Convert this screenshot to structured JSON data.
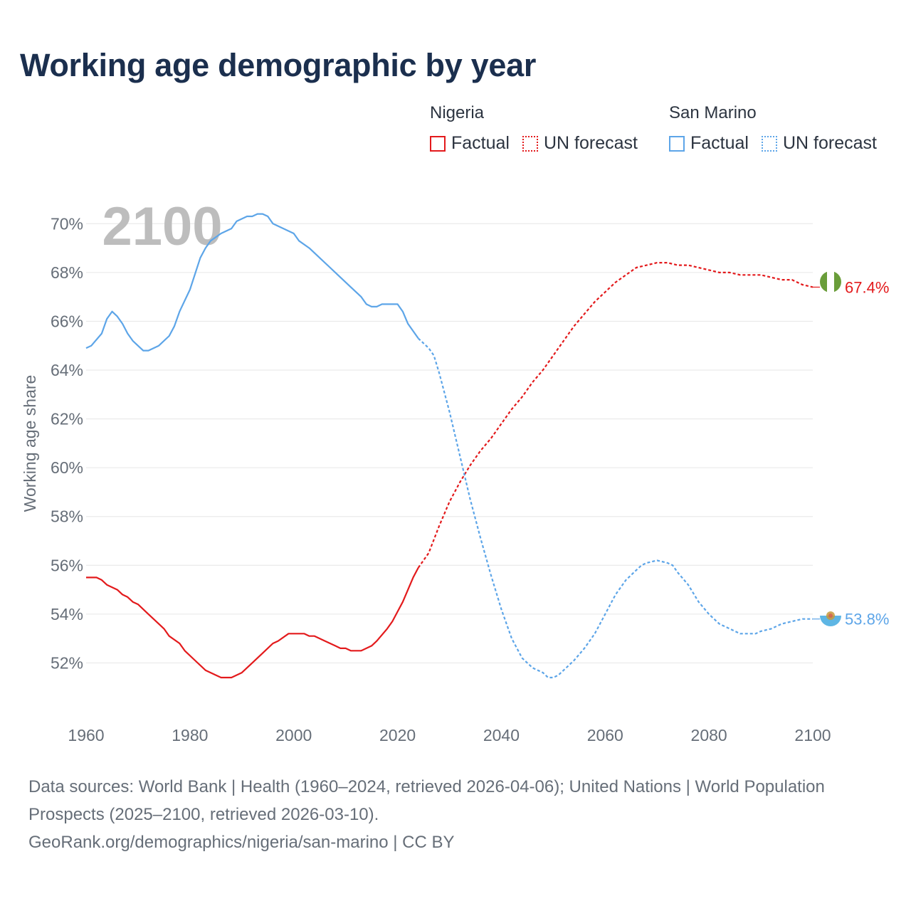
{
  "title": "Working age demographic by year",
  "legend": {
    "groups": [
      {
        "country": "Nigeria",
        "factual_label": "Factual",
        "forecast_label": "UN forecast",
        "color": "#e31a1c"
      },
      {
        "country": "San Marino",
        "factual_label": "Factual",
        "forecast_label": "UN forecast",
        "color": "#5da5e8"
      }
    ]
  },
  "year_label": "2100",
  "chart_data": {
    "type": "line",
    "title": "Working age demographic by year",
    "xlabel": "",
    "ylabel": "Working age share",
    "xlim": [
      1960,
      2100
    ],
    "ylim": [
      50.0,
      71.0
    ],
    "x_ticks": [
      1960,
      1980,
      2000,
      2020,
      2040,
      2060,
      2080,
      2100
    ],
    "y_ticks": [
      52,
      54,
      56,
      58,
      60,
      62,
      64,
      66,
      68,
      70
    ],
    "y_tick_suffix": "%",
    "grid": true,
    "factual_end_year": 2024,
    "series": [
      {
        "name": "Nigeria",
        "color": "#e31a1c",
        "end_label": "67.4%",
        "points": [
          [
            1960,
            55.5
          ],
          [
            1962,
            55.5
          ],
          [
            1963,
            55.4
          ],
          [
            1964,
            55.2
          ],
          [
            1966,
            55.0
          ],
          [
            1967,
            54.8
          ],
          [
            1968,
            54.7
          ],
          [
            1969,
            54.5
          ],
          [
            1970,
            54.4
          ],
          [
            1972,
            54.0
          ],
          [
            1974,
            53.6
          ],
          [
            1975,
            53.4
          ],
          [
            1976,
            53.1
          ],
          [
            1978,
            52.8
          ],
          [
            1979,
            52.5
          ],
          [
            1981,
            52.1
          ],
          [
            1983,
            51.7
          ],
          [
            1985,
            51.5
          ],
          [
            1986,
            51.4
          ],
          [
            1988,
            51.4
          ],
          [
            1990,
            51.6
          ],
          [
            1992,
            52.0
          ],
          [
            1994,
            52.4
          ],
          [
            1996,
            52.8
          ],
          [
            1997,
            52.9
          ],
          [
            1999,
            53.2
          ],
          [
            2002,
            53.2
          ],
          [
            2003,
            53.1
          ],
          [
            2004,
            53.1
          ],
          [
            2006,
            52.9
          ],
          [
            2008,
            52.7
          ],
          [
            2009,
            52.6
          ],
          [
            2010,
            52.6
          ],
          [
            2011,
            52.5
          ],
          [
            2013,
            52.5
          ],
          [
            2015,
            52.7
          ],
          [
            2016,
            52.9
          ],
          [
            2018,
            53.4
          ],
          [
            2019,
            53.7
          ],
          [
            2020,
            54.1
          ],
          [
            2021,
            54.5
          ],
          [
            2022,
            55.0
          ],
          [
            2023,
            55.5
          ],
          [
            2024,
            55.9
          ],
          [
            2026,
            56.5
          ],
          [
            2028,
            57.6
          ],
          [
            2030,
            58.6
          ],
          [
            2032,
            59.4
          ],
          [
            2034,
            60.1
          ],
          [
            2036,
            60.7
          ],
          [
            2038,
            61.2
          ],
          [
            2040,
            61.8
          ],
          [
            2042,
            62.4
          ],
          [
            2044,
            62.9
          ],
          [
            2046,
            63.5
          ],
          [
            2048,
            64.0
          ],
          [
            2050,
            64.6
          ],
          [
            2052,
            65.2
          ],
          [
            2054,
            65.8
          ],
          [
            2056,
            66.3
          ],
          [
            2058,
            66.8
          ],
          [
            2060,
            67.2
          ],
          [
            2062,
            67.6
          ],
          [
            2064,
            67.9
          ],
          [
            2066,
            68.2
          ],
          [
            2068,
            68.3
          ],
          [
            2070,
            68.4
          ],
          [
            2072,
            68.4
          ],
          [
            2074,
            68.3
          ],
          [
            2076,
            68.3
          ],
          [
            2078,
            68.2
          ],
          [
            2080,
            68.1
          ],
          [
            2082,
            68.0
          ],
          [
            2084,
            68.0
          ],
          [
            2086,
            67.9
          ],
          [
            2090,
            67.9
          ],
          [
            2092,
            67.8
          ],
          [
            2094,
            67.7
          ],
          [
            2096,
            67.7
          ],
          [
            2098,
            67.5
          ],
          [
            2100,
            67.4
          ]
        ]
      },
      {
        "name": "San Marino",
        "color": "#5da5e8",
        "end_label": "53.8%",
        "points": [
          [
            1960,
            64.9
          ],
          [
            1961,
            65.0
          ],
          [
            1963,
            65.5
          ],
          [
            1964,
            66.1
          ],
          [
            1965,
            66.4
          ],
          [
            1966,
            66.2
          ],
          [
            1967,
            65.9
          ],
          [
            1968,
            65.5
          ],
          [
            1969,
            65.2
          ],
          [
            1971,
            64.8
          ],
          [
            1972,
            64.8
          ],
          [
            1974,
            65.0
          ],
          [
            1976,
            65.4
          ],
          [
            1977,
            65.8
          ],
          [
            1978,
            66.4
          ],
          [
            1980,
            67.3
          ],
          [
            1982,
            68.6
          ],
          [
            1983,
            69.0
          ],
          [
            1984,
            69.3
          ],
          [
            1986,
            69.6
          ],
          [
            1988,
            69.8
          ],
          [
            1989,
            70.1
          ],
          [
            1991,
            70.3
          ],
          [
            1992,
            70.3
          ],
          [
            1993,
            70.4
          ],
          [
            1994,
            70.4
          ],
          [
            1995,
            70.3
          ],
          [
            1996,
            70.0
          ],
          [
            1998,
            69.8
          ],
          [
            2000,
            69.6
          ],
          [
            2001,
            69.3
          ],
          [
            2003,
            69.0
          ],
          [
            2005,
            68.6
          ],
          [
            2007,
            68.2
          ],
          [
            2009,
            67.8
          ],
          [
            2011,
            67.4
          ],
          [
            2013,
            67.0
          ],
          [
            2014,
            66.7
          ],
          [
            2015,
            66.6
          ],
          [
            2016,
            66.6
          ],
          [
            2017,
            66.7
          ],
          [
            2020,
            66.7
          ],
          [
            2021,
            66.4
          ],
          [
            2022,
            65.9
          ],
          [
            2024,
            65.3
          ],
          [
            2026,
            64.9
          ],
          [
            2027,
            64.6
          ],
          [
            2028,
            63.9
          ],
          [
            2030,
            62.3
          ],
          [
            2032,
            60.5
          ],
          [
            2034,
            58.7
          ],
          [
            2036,
            57.1
          ],
          [
            2038,
            55.6
          ],
          [
            2040,
            54.2
          ],
          [
            2042,
            53.0
          ],
          [
            2044,
            52.2
          ],
          [
            2046,
            51.8
          ],
          [
            2048,
            51.6
          ],
          [
            2049,
            51.4
          ],
          [
            2050,
            51.4
          ],
          [
            2051,
            51.5
          ],
          [
            2052,
            51.7
          ],
          [
            2054,
            52.1
          ],
          [
            2056,
            52.6
          ],
          [
            2058,
            53.2
          ],
          [
            2060,
            54.0
          ],
          [
            2062,
            54.8
          ],
          [
            2064,
            55.4
          ],
          [
            2066,
            55.8
          ],
          [
            2067,
            56.0
          ],
          [
            2068,
            56.1
          ],
          [
            2070,
            56.2
          ],
          [
            2072,
            56.1
          ],
          [
            2073,
            56.0
          ],
          [
            2074,
            55.7
          ],
          [
            2076,
            55.2
          ],
          [
            2078,
            54.5
          ],
          [
            2080,
            54.0
          ],
          [
            2082,
            53.6
          ],
          [
            2084,
            53.4
          ],
          [
            2086,
            53.2
          ],
          [
            2089,
            53.2
          ],
          [
            2090,
            53.3
          ],
          [
            2092,
            53.4
          ],
          [
            2094,
            53.6
          ],
          [
            2096,
            53.7
          ],
          [
            2098,
            53.8
          ],
          [
            2100,
            53.8
          ]
        ]
      }
    ]
  },
  "sources_text": "Data sources: World Bank | Health (1960–2024, retrieved 2026-04-06); United Nations | World Population Prospects (2025–2100, retrieved 2026-03-10).",
  "attribution_text": "GeoRank.org/demographics/nigeria/san-marino | CC BY",
  "flags": {
    "nigeria": {
      "colors": [
        "#008751",
        "#ffffff"
      ]
    },
    "san_marino": {
      "colors": [
        "#ffffff",
        "#5eb6e4",
        "#c79a3a"
      ]
    }
  }
}
